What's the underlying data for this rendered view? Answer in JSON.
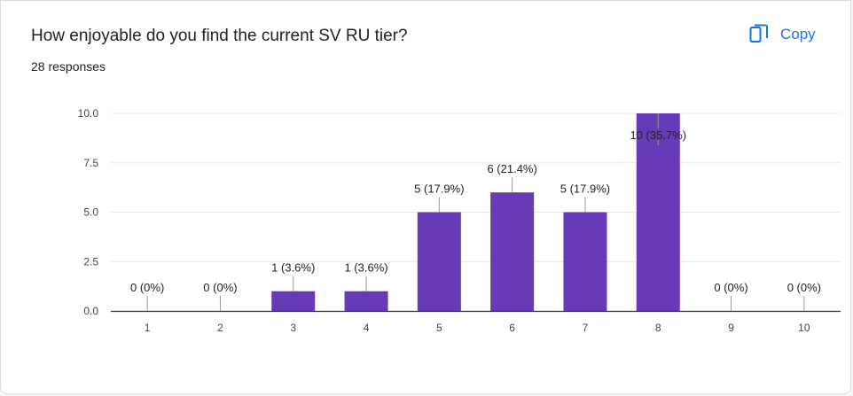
{
  "question": {
    "title": "How enjoyable do you find the current SV RU tier?",
    "responses": "28 responses"
  },
  "copy_button": {
    "label": "Copy",
    "icon": "copy-icon"
  },
  "colors": {
    "bar": "#673ab7",
    "accent": "#1a73e8",
    "gridline": "#e8e8e8",
    "axis": "#333333"
  },
  "chart_data": {
    "type": "bar",
    "categories": [
      "1",
      "2",
      "3",
      "4",
      "5",
      "6",
      "7",
      "8",
      "9",
      "10"
    ],
    "values": [
      0,
      0,
      1,
      1,
      5,
      6,
      5,
      10,
      0,
      0
    ],
    "data_labels": [
      "0 (0%)",
      "0 (0%)",
      "1 (3.6%)",
      "1 (3.6%)",
      "5 (17.9%)",
      "6 (21.4%)",
      "5 (17.9%)",
      "10 (35.7%)",
      "0 (0%)",
      "0 (0%)"
    ],
    "yticks": [
      "0.0",
      "2.5",
      "5.0",
      "7.5",
      "10.0"
    ],
    "ylim": [
      0,
      10
    ],
    "grid": true
  }
}
